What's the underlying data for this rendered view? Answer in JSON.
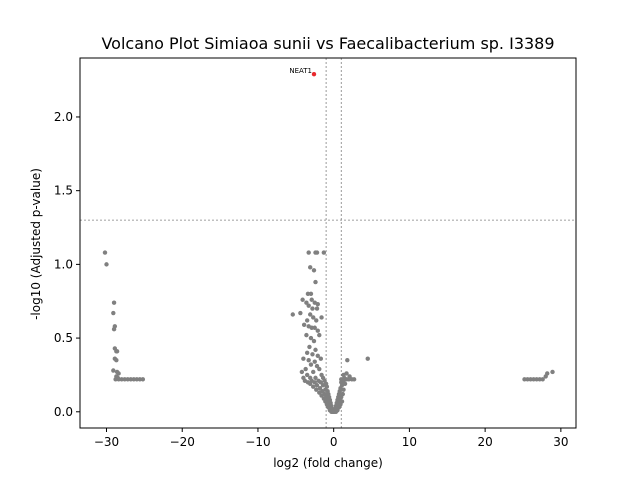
{
  "chart_data": {
    "type": "scatter",
    "title": "Volcano Plot Simiaoa sunii vs Faecalibacterium sp. I3389",
    "xlabel": "log2 (fold change)",
    "ylabel": "-log10 (Adjusted p-value)",
    "xlim": [
      -33.5,
      32
    ],
    "ylim": [
      -0.11,
      2.4
    ],
    "xticks": [
      -30,
      -20,
      -10,
      0,
      10,
      20,
      30
    ],
    "xtick_labels": [
      "−30",
      "−20",
      "−10",
      "0",
      "10",
      "20",
      "30"
    ],
    "yticks": [
      0.0,
      0.5,
      1.0,
      1.5,
      2.0
    ],
    "ytick_labels": [
      "0.0",
      "0.5",
      "1.0",
      "1.5",
      "2.0"
    ],
    "thresholds": {
      "x": [
        -1,
        1
      ],
      "y": 1.3
    },
    "grid": false,
    "colors": {
      "nonsignificant": "#808080",
      "significant": "#e8282d",
      "threshold": "#808080"
    },
    "series": [
      {
        "values": [
          [
            -30.2,
            1.08
          ],
          [
            -30.0,
            1.0
          ],
          [
            -29.0,
            0.74
          ],
          [
            -29.1,
            0.67
          ],
          [
            -28.9,
            0.58
          ],
          [
            -29.0,
            0.56
          ],
          [
            -28.9,
            0.43
          ],
          [
            -28.7,
            0.41
          ],
          [
            -28.6,
            0.41
          ],
          [
            -28.9,
            0.36
          ],
          [
            -28.7,
            0.35
          ],
          [
            -29.1,
            0.28
          ],
          [
            -28.6,
            0.27
          ],
          [
            -28.4,
            0.26
          ],
          [
            -28.7,
            0.24
          ],
          [
            -28.5,
            0.23
          ],
          [
            -28.8,
            0.22
          ],
          [
            -28.4,
            0.22
          ],
          [
            -28.0,
            0.22
          ],
          [
            -27.6,
            0.22
          ],
          [
            -27.2,
            0.22
          ],
          [
            -26.8,
            0.22
          ],
          [
            -26.4,
            0.22
          ],
          [
            -26.0,
            0.22
          ],
          [
            -25.6,
            0.22
          ],
          [
            -25.2,
            0.22
          ],
          [
            25.2,
            0.22
          ],
          [
            25.6,
            0.22
          ],
          [
            26.0,
            0.22
          ],
          [
            26.4,
            0.22
          ],
          [
            26.8,
            0.22
          ],
          [
            27.2,
            0.22
          ],
          [
            27.6,
            0.22
          ],
          [
            28.0,
            0.24
          ],
          [
            28.2,
            0.26
          ],
          [
            28.9,
            0.27
          ],
          [
            -3.3,
            1.08
          ],
          [
            -2.4,
            1.08
          ],
          [
            -2.2,
            1.08
          ],
          [
            -1.3,
            1.08
          ],
          [
            -3.1,
            0.98
          ],
          [
            -2.6,
            0.96
          ],
          [
            -2.4,
            0.88
          ],
          [
            -3.4,
            0.8
          ],
          [
            -3.0,
            0.8
          ],
          [
            -4.1,
            0.76
          ],
          [
            -3.6,
            0.74
          ],
          [
            -3.3,
            0.72
          ],
          [
            -2.9,
            0.76
          ],
          [
            -2.5,
            0.74
          ],
          [
            -2.1,
            0.73
          ],
          [
            -2.8,
            0.7
          ],
          [
            -2.2,
            0.7
          ],
          [
            -4.4,
            0.67
          ],
          [
            -3.1,
            0.66
          ],
          [
            -2.7,
            0.64
          ],
          [
            -1.6,
            0.64
          ],
          [
            -3.5,
            0.62
          ],
          [
            -2.3,
            0.62
          ],
          [
            -3.9,
            0.59
          ],
          [
            -3.3,
            0.58
          ],
          [
            -2.9,
            0.57
          ],
          [
            -2.5,
            0.57
          ],
          [
            -2.1,
            0.55
          ],
          [
            -1.9,
            0.52
          ],
          [
            -3.6,
            0.52
          ],
          [
            -3.0,
            0.5
          ],
          [
            -2.6,
            0.48
          ],
          [
            -5.4,
            0.66
          ],
          [
            -3.2,
            0.44
          ],
          [
            -2.4,
            0.42
          ],
          [
            -3.5,
            0.4
          ],
          [
            -2.8,
            0.39
          ],
          [
            -2.1,
            0.38
          ],
          [
            -1.7,
            0.36
          ],
          [
            -4.0,
            0.36
          ],
          [
            -3.3,
            0.35
          ],
          [
            -2.5,
            0.34
          ],
          [
            -3.0,
            0.32
          ],
          [
            -2.2,
            0.31
          ],
          [
            -3.7,
            0.29
          ],
          [
            -1.9,
            0.29
          ],
          [
            -4.2,
            0.27
          ],
          [
            -2.7,
            0.27
          ],
          [
            -3.5,
            0.25
          ],
          [
            -1.6,
            0.25
          ],
          [
            -4.0,
            0.23
          ],
          [
            -3.1,
            0.23
          ],
          [
            -2.4,
            0.23
          ],
          [
            -1.4,
            0.23
          ],
          [
            -3.8,
            0.21
          ],
          [
            -2.9,
            0.21
          ],
          [
            -2.0,
            0.21
          ],
          [
            -1.2,
            0.21
          ],
          [
            -3.4,
            0.2
          ],
          [
            -2.5,
            0.2
          ],
          [
            -1.7,
            0.2
          ],
          [
            -1.0,
            0.19
          ],
          [
            -3.1,
            0.19
          ],
          [
            -2.2,
            0.18
          ],
          [
            -1.4,
            0.18
          ],
          [
            -0.9,
            0.17
          ],
          [
            -2.7,
            0.17
          ],
          [
            -1.8,
            0.16
          ],
          [
            -1.1,
            0.15
          ],
          [
            -2.3,
            0.15
          ],
          [
            -1.5,
            0.14
          ],
          [
            -0.8,
            0.14
          ],
          [
            -1.9,
            0.13
          ],
          [
            -1.2,
            0.12
          ],
          [
            -0.7,
            0.12
          ],
          [
            -1.6,
            0.11
          ],
          [
            -1.0,
            0.1
          ],
          [
            -0.6,
            0.1
          ],
          [
            -1.3,
            0.09
          ],
          [
            -0.8,
            0.08
          ],
          [
            -0.5,
            0.08
          ],
          [
            -1.1,
            0.07
          ],
          [
            -0.6,
            0.06
          ],
          [
            -0.4,
            0.06
          ],
          [
            -0.9,
            0.05
          ],
          [
            -0.5,
            0.04
          ],
          [
            -0.3,
            0.04
          ],
          [
            -0.7,
            0.03
          ],
          [
            -0.4,
            0.02
          ],
          [
            -0.2,
            0.02
          ],
          [
            -0.5,
            0.01
          ],
          [
            -0.3,
            0.0
          ],
          [
            -0.1,
            0.0
          ],
          [
            0.0,
            0.0
          ],
          [
            0.1,
            0.0
          ],
          [
            0.3,
            0.0
          ],
          [
            0.5,
            0.01
          ],
          [
            0.2,
            0.02
          ],
          [
            0.4,
            0.02
          ],
          [
            0.7,
            0.03
          ],
          [
            0.3,
            0.04
          ],
          [
            0.5,
            0.04
          ],
          [
            0.9,
            0.05
          ],
          [
            0.4,
            0.06
          ],
          [
            0.6,
            0.06
          ],
          [
            1.1,
            0.07
          ],
          [
            0.5,
            0.08
          ],
          [
            0.8,
            0.08
          ],
          [
            0.6,
            0.1
          ],
          [
            1.0,
            0.1
          ],
          [
            0.7,
            0.12
          ],
          [
            1.2,
            0.12
          ],
          [
            0.8,
            0.14
          ],
          [
            1.3,
            0.15
          ],
          [
            0.9,
            0.16
          ],
          [
            1.1,
            0.18
          ],
          [
            1.5,
            0.19
          ],
          [
            1.0,
            0.2
          ],
          [
            1.3,
            0.21
          ],
          [
            1.7,
            0.22
          ],
          [
            1.0,
            0.22
          ],
          [
            1.4,
            0.22
          ],
          [
            2.0,
            0.22
          ],
          [
            2.4,
            0.22
          ],
          [
            2.7,
            0.22
          ],
          [
            1.4,
            0.23
          ],
          [
            2.1,
            0.24
          ],
          [
            1.3,
            0.25
          ],
          [
            1.7,
            0.26
          ],
          [
            1.8,
            0.35
          ],
          [
            4.5,
            0.36
          ]
        ]
      },
      {
        "values": [
          [
            -2.6,
            2.29
          ]
        ],
        "labels": [
          "NEAT1"
        ]
      }
    ]
  }
}
